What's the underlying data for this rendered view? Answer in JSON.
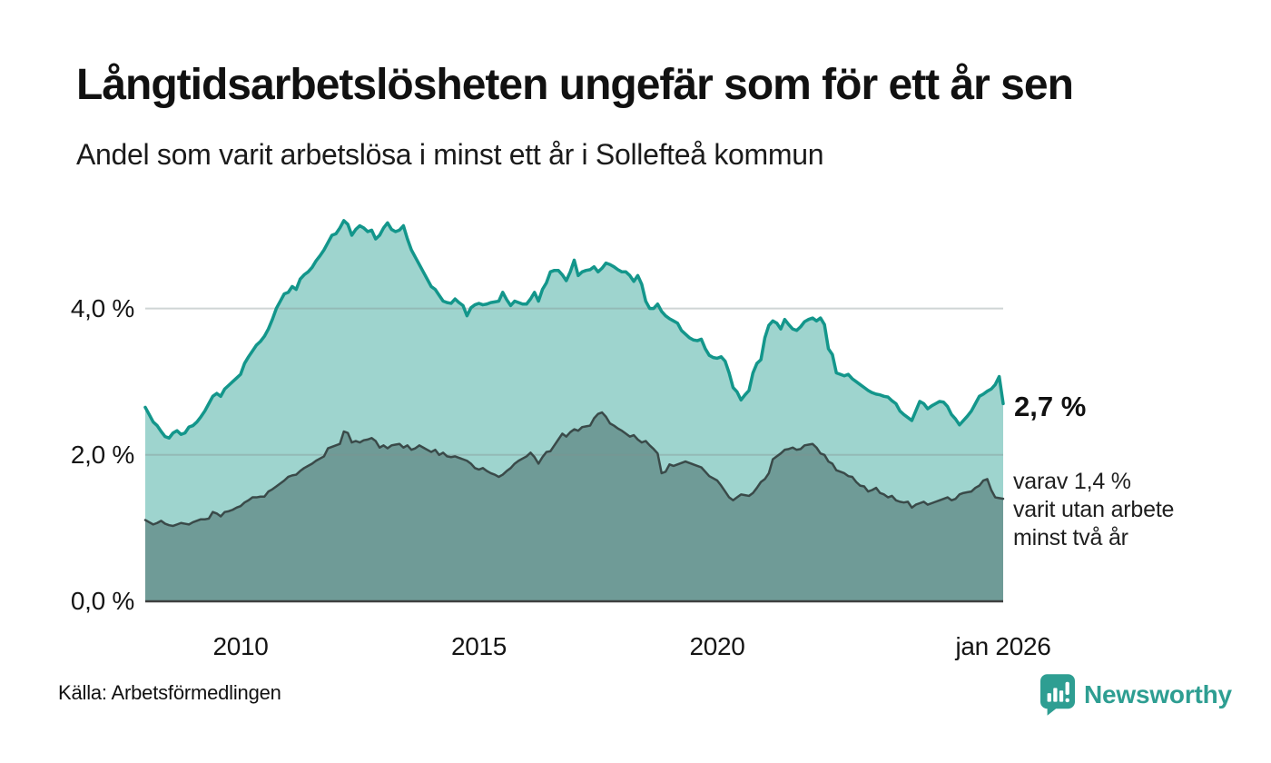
{
  "header": {
    "title": "Långtidsarbetslösheten ungefär som för ett år sen",
    "subtitle": "Andel som varit arbetslösa i minst ett år i Sollefteå kommun"
  },
  "chart": {
    "annotation_total": "2,7 %",
    "note_lines": [
      "varav 1,4 %",
      "varit utan arbete",
      "minst två år"
    ]
  },
  "footer": {
    "source": "Källa: Arbetsförmedlingen",
    "brand": "Newsworthy"
  },
  "colors": {
    "area_one_year": "#9ed4ce",
    "line_one_year": "#13968b",
    "area_two_years": "#6f9b97",
    "line_two_years": "#3a4a49",
    "grid": "rgba(130,145,145,0.38)",
    "baseline": "#3f4040",
    "brand_teal": "#2e9e92"
  },
  "chart_data": {
    "type": "area",
    "title": "Andel som varit arbetslösa i minst ett år i Sollefteå kommun",
    "x_start": "2008-01",
    "x_end": "2026-01",
    "frequency": "monthly",
    "ylim": [
      0,
      5.4
    ],
    "grid": "horizontal",
    "y_ticks": [
      {
        "label": "4,0 %",
        "value": 4
      },
      {
        "label": "2,0 %",
        "value": 2
      },
      {
        "label": "0,0 %",
        "value": 0
      }
    ],
    "x_ticks": [
      {
        "label": "2010",
        "month_index": 24
      },
      {
        "label": "2015",
        "month_index": 84
      },
      {
        "label": "2020",
        "month_index": 144
      },
      {
        "label": "jan 2026",
        "month_index": 216
      }
    ],
    "series": [
      {
        "name": "Andel arbetslösa minst ett år",
        "last_value_label": "2,7 %",
        "values": [
          2.65,
          2.55,
          2.45,
          2.4,
          2.32,
          2.25,
          2.23,
          2.3,
          2.33,
          2.28,
          2.3,
          2.38,
          2.4,
          2.45,
          2.52,
          2.6,
          2.7,
          2.8,
          2.84,
          2.8,
          2.9,
          2.95,
          3.0,
          3.05,
          3.1,
          3.25,
          3.34,
          3.42,
          3.5,
          3.55,
          3.62,
          3.72,
          3.85,
          4.0,
          4.1,
          4.2,
          4.22,
          4.3,
          4.26,
          4.4,
          4.46,
          4.5,
          4.56,
          4.65,
          4.72,
          4.8,
          4.9,
          5.0,
          5.02,
          5.1,
          5.2,
          5.15,
          5.0,
          5.08,
          5.13,
          5.1,
          5.05,
          5.07,
          4.95,
          5.0,
          5.1,
          5.17,
          5.08,
          5.05,
          5.07,
          5.13,
          4.95,
          4.8,
          4.7,
          4.6,
          4.5,
          4.4,
          4.3,
          4.26,
          4.18,
          4.1,
          4.08,
          4.07,
          4.13,
          4.08,
          4.04,
          3.9,
          4.01,
          4.05,
          4.07,
          4.05,
          4.06,
          4.08,
          4.09,
          4.1,
          4.22,
          4.12,
          4.04,
          4.1,
          4.08,
          4.06,
          4.06,
          4.13,
          4.22,
          4.1,
          4.26,
          4.35,
          4.5,
          4.52,
          4.52,
          4.46,
          4.38,
          4.5,
          4.66,
          4.45,
          4.5,
          4.52,
          4.53,
          4.57,
          4.5,
          4.55,
          4.62,
          4.6,
          4.57,
          4.53,
          4.5,
          4.5,
          4.45,
          4.37,
          4.45,
          4.33,
          4.1,
          4.0,
          4.0,
          4.06,
          3.96,
          3.9,
          3.86,
          3.83,
          3.8,
          3.7,
          3.65,
          3.6,
          3.57,
          3.56,
          3.58,
          3.45,
          3.36,
          3.33,
          3.32,
          3.34,
          3.28,
          3.12,
          2.92,
          2.86,
          2.75,
          2.82,
          2.88,
          3.12,
          3.25,
          3.3,
          3.6,
          3.77,
          3.83,
          3.8,
          3.72,
          3.85,
          3.78,
          3.72,
          3.7,
          3.75,
          3.82,
          3.85,
          3.87,
          3.83,
          3.87,
          3.78,
          3.45,
          3.37,
          3.12,
          3.1,
          3.08,
          3.1,
          3.04,
          3.0,
          2.96,
          2.92,
          2.88,
          2.85,
          2.83,
          2.82,
          2.8,
          2.79,
          2.74,
          2.7,
          2.6,
          2.55,
          2.51,
          2.47,
          2.6,
          2.73,
          2.7,
          2.63,
          2.67,
          2.7,
          2.73,
          2.72,
          2.66,
          2.55,
          2.49,
          2.41,
          2.47,
          2.53,
          2.6,
          2.7,
          2.8,
          2.83,
          2.87,
          2.9,
          2.96,
          3.07,
          2.7
        ]
      },
      {
        "name": "varav utan arbete minst två år",
        "last_value_label": "1,4 %",
        "values": [
          1.11,
          1.08,
          1.05,
          1.07,
          1.1,
          1.06,
          1.04,
          1.03,
          1.05,
          1.07,
          1.06,
          1.05,
          1.08,
          1.1,
          1.12,
          1.12,
          1.13,
          1.22,
          1.2,
          1.16,
          1.22,
          1.23,
          1.25,
          1.28,
          1.3,
          1.35,
          1.38,
          1.42,
          1.42,
          1.43,
          1.43,
          1.5,
          1.53,
          1.57,
          1.61,
          1.65,
          1.7,
          1.72,
          1.73,
          1.78,
          1.82,
          1.85,
          1.88,
          1.92,
          1.95,
          1.98,
          2.09,
          2.11,
          2.13,
          2.15,
          2.32,
          2.3,
          2.17,
          2.19,
          2.17,
          2.2,
          2.21,
          2.23,
          2.19,
          2.1,
          2.13,
          2.09,
          2.13,
          2.14,
          2.15,
          2.1,
          2.13,
          2.07,
          2.09,
          2.13,
          2.1,
          2.07,
          2.04,
          2.07,
          2.0,
          2.03,
          1.98,
          1.97,
          1.98,
          1.96,
          1.94,
          1.92,
          1.88,
          1.82,
          1.8,
          1.82,
          1.78,
          1.75,
          1.73,
          1.7,
          1.73,
          1.78,
          1.82,
          1.88,
          1.92,
          1.95,
          1.98,
          2.03,
          1.97,
          1.88,
          1.97,
          2.04,
          2.05,
          2.13,
          2.21,
          2.29,
          2.25,
          2.31,
          2.35,
          2.33,
          2.38,
          2.39,
          2.4,
          2.5,
          2.56,
          2.58,
          2.52,
          2.43,
          2.4,
          2.36,
          2.33,
          2.29,
          2.25,
          2.27,
          2.21,
          2.17,
          2.19,
          2.13,
          2.08,
          2.02,
          1.75,
          1.77,
          1.87,
          1.85,
          1.87,
          1.89,
          1.91,
          1.89,
          1.87,
          1.85,
          1.83,
          1.77,
          1.71,
          1.68,
          1.65,
          1.58,
          1.5,
          1.42,
          1.38,
          1.42,
          1.46,
          1.45,
          1.44,
          1.48,
          1.55,
          1.63,
          1.67,
          1.75,
          1.94,
          1.98,
          2.02,
          2.07,
          2.08,
          2.1,
          2.07,
          2.08,
          2.13,
          2.14,
          2.15,
          2.1,
          2.02,
          2.0,
          1.91,
          1.88,
          1.79,
          1.77,
          1.75,
          1.71,
          1.7,
          1.63,
          1.58,
          1.57,
          1.5,
          1.52,
          1.55,
          1.48,
          1.46,
          1.42,
          1.44,
          1.38,
          1.36,
          1.35,
          1.36,
          1.28,
          1.32,
          1.34,
          1.36,
          1.32,
          1.34,
          1.36,
          1.38,
          1.4,
          1.42,
          1.38,
          1.4,
          1.46,
          1.48,
          1.49,
          1.5,
          1.55,
          1.58,
          1.65,
          1.67,
          1.52,
          1.42,
          1.41,
          1.4
        ]
      }
    ]
  }
}
